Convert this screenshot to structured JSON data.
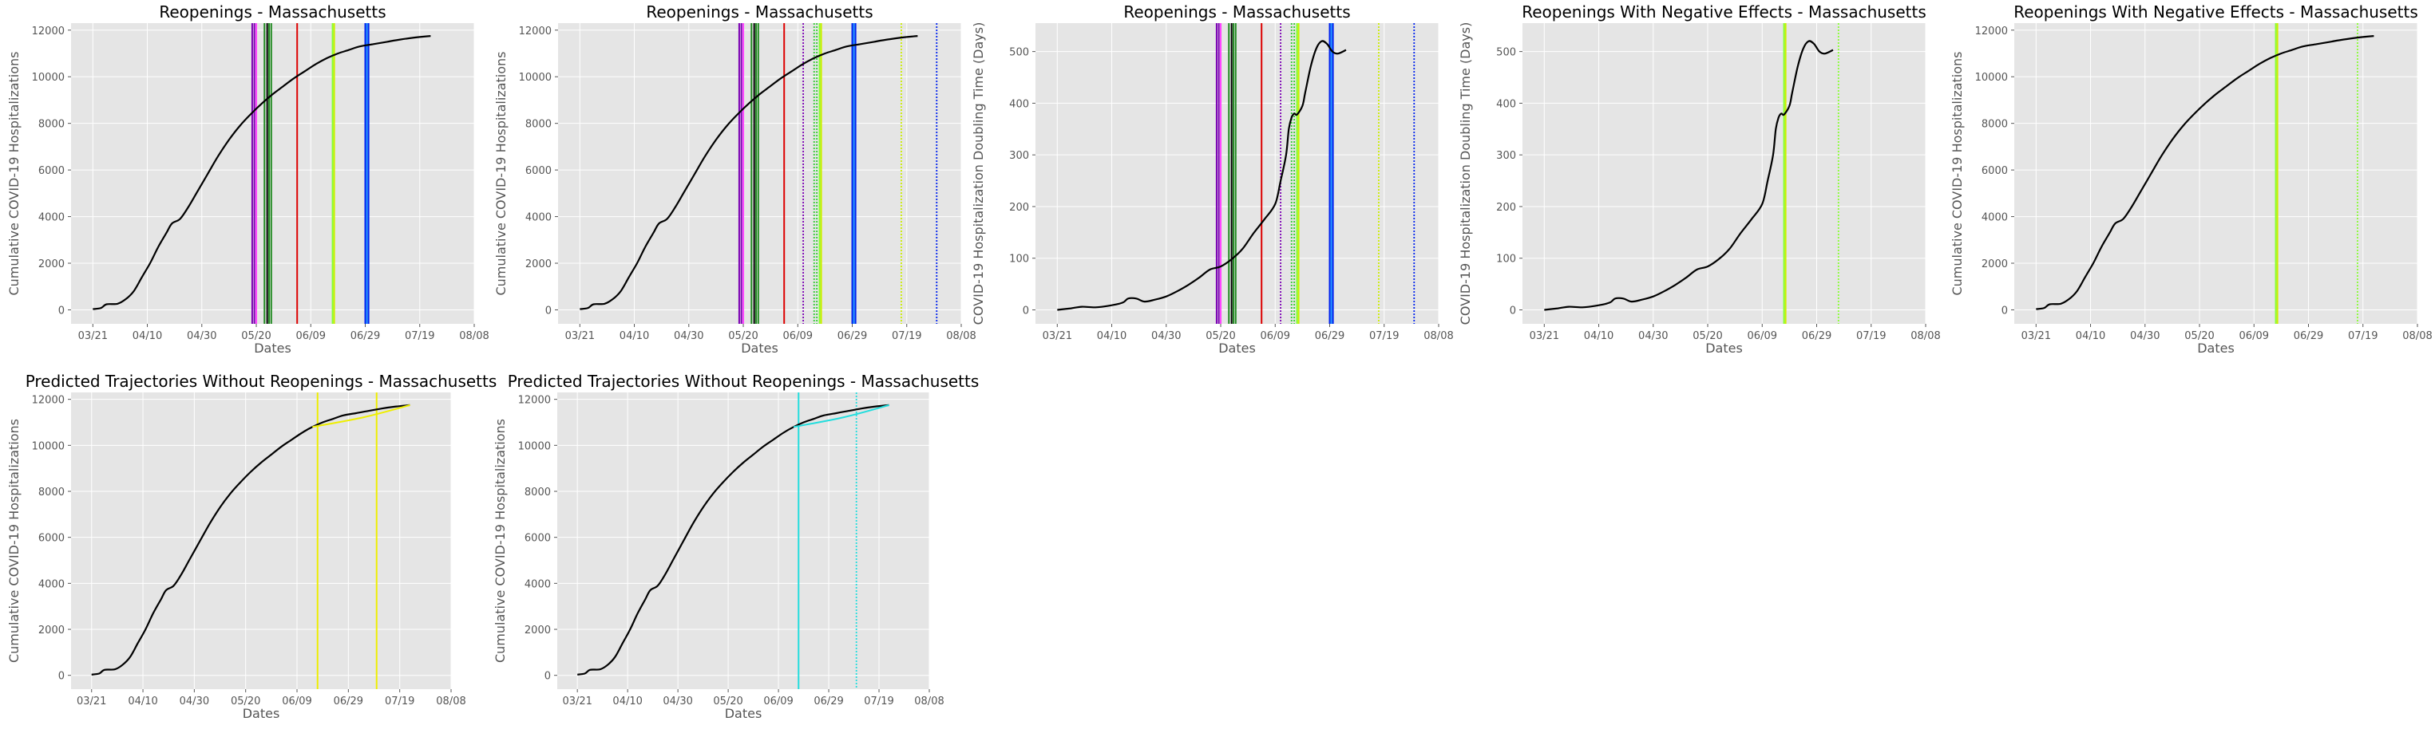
{
  "figure": {
    "x_tick_labels": [
      "03/21",
      "04/10",
      "04/30",
      "05/20",
      "06/09",
      "06/29",
      "07/19",
      "08/08"
    ],
    "xlabel": "Dates",
    "colors": {
      "panel_bg": "#e5e5e5",
      "grid": "#ffffff",
      "curve": "#000000",
      "text": "#555555",
      "title": "#000000"
    }
  },
  "chart_data": [
    {
      "type": "line",
      "title": "Reopenings - Massachusetts",
      "xlabel": "Dates",
      "ylabel": "Cumulative COVID-19 Hospitalizations",
      "metric": "hosp",
      "xlim": [
        -8,
        140
      ],
      "ylim": [
        -600,
        12300
      ],
      "yticks": [
        0,
        2000,
        4000,
        6000,
        8000,
        10000,
        12000
      ],
      "grid": true,
      "vlines": [
        {
          "day": 58.5,
          "color": "#7b00b4",
          "style": "solid"
        },
        {
          "day": 59.3,
          "color": "#7b00b4",
          "style": "solid"
        },
        {
          "day": 60,
          "color": "#ff44ff",
          "style": "solid"
        },
        {
          "day": 63,
          "color": "#228b22",
          "style": "solid"
        },
        {
          "day": 64,
          "color": "#000000",
          "style": "solid"
        },
        {
          "day": 64.7,
          "color": "#228b22",
          "style": "solid"
        },
        {
          "day": 65.5,
          "color": "#228b22",
          "style": "solid"
        },
        {
          "day": 75,
          "color": "#dd0000",
          "style": "solid"
        },
        {
          "day": 88,
          "color": "#88ff33",
          "style": "solid"
        },
        {
          "day": 88.6,
          "color": "#ccee00",
          "style": "solid"
        },
        {
          "day": 100,
          "color": "#0022ee",
          "style": "solid"
        },
        {
          "day": 100.6,
          "color": "#1e90ff",
          "style": "solid"
        },
        {
          "day": 101.2,
          "color": "#0022ee",
          "style": "solid"
        }
      ]
    },
    {
      "type": "line",
      "title": "Reopenings - Massachusetts",
      "xlabel": "Dates",
      "ylabel": "Cumulative COVID-19 Hospitalizations",
      "metric": "hosp",
      "xlim": [
        -8,
        140
      ],
      "ylim": [
        -600,
        12300
      ],
      "yticks": [
        0,
        2000,
        4000,
        6000,
        8000,
        10000,
        12000
      ],
      "grid": true,
      "vlines": [
        {
          "day": 58.5,
          "color": "#7b00b4",
          "style": "solid"
        },
        {
          "day": 59.3,
          "color": "#7b00b4",
          "style": "solid"
        },
        {
          "day": 60,
          "color": "#ff44ff",
          "style": "solid"
        },
        {
          "day": 63,
          "color": "#228b22",
          "style": "solid"
        },
        {
          "day": 64,
          "color": "#000000",
          "style": "solid"
        },
        {
          "day": 64.7,
          "color": "#228b22",
          "style": "solid"
        },
        {
          "day": 65.5,
          "color": "#228b22",
          "style": "solid"
        },
        {
          "day": 75,
          "color": "#dd0000",
          "style": "solid"
        },
        {
          "day": 82,
          "color": "#7b00b4",
          "style": "dotted"
        },
        {
          "day": 86,
          "color": "#33cc33",
          "style": "dotted"
        },
        {
          "day": 87,
          "color": "#33cc33",
          "style": "dotted"
        },
        {
          "day": 88,
          "color": "#88ff33",
          "style": "solid"
        },
        {
          "day": 88.6,
          "color": "#ccee00",
          "style": "solid"
        },
        {
          "day": 100,
          "color": "#0022ee",
          "style": "solid"
        },
        {
          "day": 100.6,
          "color": "#1e90ff",
          "style": "solid"
        },
        {
          "day": 101.2,
          "color": "#0022ee",
          "style": "solid"
        },
        {
          "day": 118,
          "color": "#ccee00",
          "style": "dotted"
        },
        {
          "day": 131,
          "color": "#0022ee",
          "style": "dotted"
        }
      ]
    },
    {
      "type": "line",
      "title": "Reopenings - Massachusetts",
      "xlabel": "Dates",
      "ylabel": "COVID-19 Hospitalization Doubling Time (Days)",
      "metric": "doubling",
      "xlim": [
        -8,
        140
      ],
      "ylim": [
        -27,
        555
      ],
      "yticks": [
        0,
        100,
        200,
        300,
        400,
        500
      ],
      "grid": true,
      "vlines": [
        {
          "day": 58.5,
          "color": "#7b00b4",
          "style": "solid"
        },
        {
          "day": 59.3,
          "color": "#7b00b4",
          "style": "solid"
        },
        {
          "day": 60,
          "color": "#ff44ff",
          "style": "solid"
        },
        {
          "day": 63,
          "color": "#228b22",
          "style": "solid"
        },
        {
          "day": 64,
          "color": "#000000",
          "style": "solid"
        },
        {
          "day": 64.7,
          "color": "#228b22",
          "style": "solid"
        },
        {
          "day": 65.5,
          "color": "#228b22",
          "style": "solid"
        },
        {
          "day": 75,
          "color": "#dd0000",
          "style": "solid"
        },
        {
          "day": 82,
          "color": "#7b00b4",
          "style": "dotted"
        },
        {
          "day": 86,
          "color": "#33cc33",
          "style": "dotted"
        },
        {
          "day": 87,
          "color": "#33cc33",
          "style": "dotted"
        },
        {
          "day": 88,
          "color": "#88ff33",
          "style": "solid"
        },
        {
          "day": 88.6,
          "color": "#ccee00",
          "style": "solid"
        },
        {
          "day": 100,
          "color": "#0022ee",
          "style": "solid"
        },
        {
          "day": 100.6,
          "color": "#1e90ff",
          "style": "solid"
        },
        {
          "day": 101.2,
          "color": "#0022ee",
          "style": "solid"
        },
        {
          "day": 118,
          "color": "#ccee00",
          "style": "dotted"
        },
        {
          "day": 131,
          "color": "#0022ee",
          "style": "dotted"
        }
      ]
    },
    {
      "type": "line",
      "title": "Reopenings With Negative Effects - Massachusetts",
      "xlabel": "Dates",
      "ylabel": "COVID-19 Hospitalization Doubling Time (Days)",
      "metric": "doubling",
      "xlim": [
        -8,
        140
      ],
      "ylim": [
        -27,
        555
      ],
      "yticks": [
        0,
        100,
        200,
        300,
        400,
        500
      ],
      "grid": true,
      "vlines": [
        {
          "day": 88,
          "color": "#88ff33",
          "style": "solid"
        },
        {
          "day": 88.6,
          "color": "#ccee00",
          "style": "solid"
        },
        {
          "day": 108,
          "color": "#88ff33",
          "style": "dotted"
        }
      ]
    },
    {
      "type": "line",
      "title": "Reopenings With Negative Effects - Massachusetts",
      "xlabel": "Dates",
      "ylabel": "Cumulative COVID-19 Hospitalizations",
      "metric": "hosp",
      "xlim": [
        -8,
        140
      ],
      "ylim": [
        -600,
        12300
      ],
      "yticks": [
        0,
        2000,
        4000,
        6000,
        8000,
        10000,
        12000
      ],
      "grid": true,
      "vlines": [
        {
          "day": 88,
          "color": "#88ff33",
          "style": "solid"
        },
        {
          "day": 88.6,
          "color": "#ccee00",
          "style": "solid"
        },
        {
          "day": 118,
          "color": "#88ff33",
          "style": "dotted"
        }
      ]
    },
    {
      "type": "line",
      "title": "Predicted Trajectories Without Reopenings - Massachusetts",
      "xlabel": "Dates",
      "ylabel": "Cumulative COVID-19 Hospitalizations",
      "metric": "hosp",
      "xlim": [
        -8,
        140
      ],
      "ylim": [
        -600,
        12300
      ],
      "yticks": [
        0,
        2000,
        4000,
        6000,
        8000,
        10000,
        12000
      ],
      "grid": true,
      "vlines": [
        {
          "day": 88,
          "color": "#eeee00",
          "style": "solid"
        },
        {
          "day": 111,
          "color": "#eeee00",
          "style": "solid"
        }
      ],
      "prediction": {
        "color": "#eeee00",
        "start_day": 88,
        "end_day": 124,
        "end_value": 11750
      }
    },
    {
      "type": "line",
      "title": "Predicted Trajectories Without Reopenings - Massachusetts",
      "xlabel": "Dates",
      "ylabel": "Cumulative COVID-19 Hospitalizations",
      "metric": "hosp",
      "xlim": [
        -8,
        140
      ],
      "ylim": [
        -600,
        12300
      ],
      "yticks": [
        0,
        2000,
        4000,
        6000,
        8000,
        10000,
        12000
      ],
      "grid": true,
      "vlines": [
        {
          "day": 88,
          "color": "#22dddd",
          "style": "solid"
        },
        {
          "day": 111,
          "color": "#22dddd",
          "style": "dotted"
        }
      ],
      "prediction": {
        "color": "#22dddd",
        "start_day": 88,
        "end_day": 124,
        "end_value": 11750
      }
    }
  ]
}
